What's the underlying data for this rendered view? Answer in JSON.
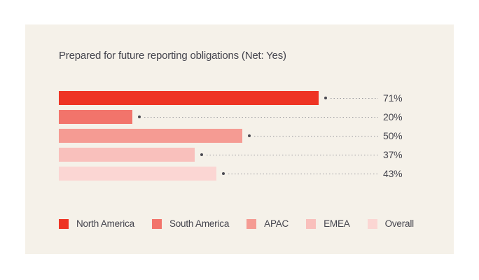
{
  "panel": {
    "background_color": "#f5f1e9",
    "page_background_color": "#ffffff"
  },
  "chart_data": {
    "type": "bar",
    "orientation": "horizontal",
    "title": "Prepared for future reporting obligations (Net: Yes)",
    "categories": [
      "North America",
      "South America",
      "APAC",
      "EMEA",
      "Overall"
    ],
    "values": [
      71,
      20,
      50,
      37,
      43
    ],
    "value_labels": [
      "71%",
      "20%",
      "50%",
      "37%",
      "43%"
    ],
    "colors": [
      "#ee3424",
      "#f2746b",
      "#f59b93",
      "#f9c0bc",
      "#fbd6d3"
    ],
    "xlim": [
      0,
      100
    ],
    "grid": false,
    "legend_position": "bottom",
    "leader_dot_color": "#4a4a52",
    "leader_line_color": "#97979c",
    "text_color": "#45454e"
  },
  "legend": {
    "items": [
      {
        "label": "North America",
        "color": "#ee3424"
      },
      {
        "label": "South America",
        "color": "#f2746b"
      },
      {
        "label": "APAC",
        "color": "#f59b93"
      },
      {
        "label": "EMEA",
        "color": "#f9c0bc"
      },
      {
        "label": "Overall",
        "color": "#fbd6d3"
      }
    ]
  }
}
